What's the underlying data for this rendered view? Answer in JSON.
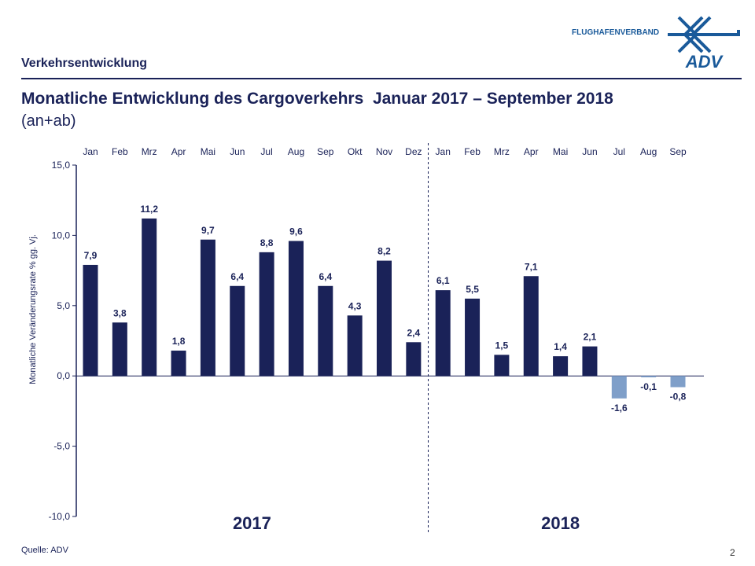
{
  "header": {
    "section": "Verkehrsentwicklung",
    "title": "Monatliche Entwicklung des Cargoverkehrs  Januar 2017 – September 2018",
    "subtitle": "(an+ab)",
    "logo_text": "FLUGHAFENVERBAND",
    "logo_mark": "ADV"
  },
  "footer": {
    "source": "Quelle: ADV",
    "page": "2"
  },
  "colors": {
    "positive": "#1a2258",
    "negative": "#7f9fc9",
    "text": "#1a2258"
  },
  "chart_data": {
    "type": "bar",
    "categories": [
      "Jan",
      "Feb",
      "Mrz",
      "Apr",
      "Mai",
      "Jun",
      "Jul",
      "Aug",
      "Sep",
      "Okt",
      "Nov",
      "Dez",
      "Jan",
      "Feb",
      "Mrz",
      "Apr",
      "Mai",
      "Jun",
      "Jul",
      "Aug",
      "Sep"
    ],
    "values": [
      7.9,
      3.8,
      11.2,
      1.8,
      9.7,
      6.4,
      8.8,
      9.6,
      6.4,
      4.3,
      8.2,
      2.4,
      6.1,
      5.5,
      1.5,
      7.1,
      1.4,
      2.1,
      -1.6,
      -0.1,
      -0.8
    ],
    "labels": [
      "7,9",
      "3,8",
      "11,2",
      "1,8",
      "9,7",
      "6,4",
      "8,8",
      "9,6",
      "6,4",
      "4,3",
      "8,2",
      "2,4",
      "6,1",
      "5,5",
      "1,5",
      "7,1",
      "1,4",
      "2,1",
      "-1,6",
      "-0,1",
      "-0,8"
    ],
    "groups": [
      {
        "label": "2017",
        "count": 12
      },
      {
        "label": "2018",
        "count": 9
      }
    ],
    "ylabel": "Monatliche Veränderungsrate % gg. Vj.",
    "ylim": [
      -10,
      15
    ],
    "yticks": [
      "-10,0",
      "-5,0",
      "0,0",
      "5,0",
      "10,0",
      "15,0"
    ],
    "grid": false
  }
}
